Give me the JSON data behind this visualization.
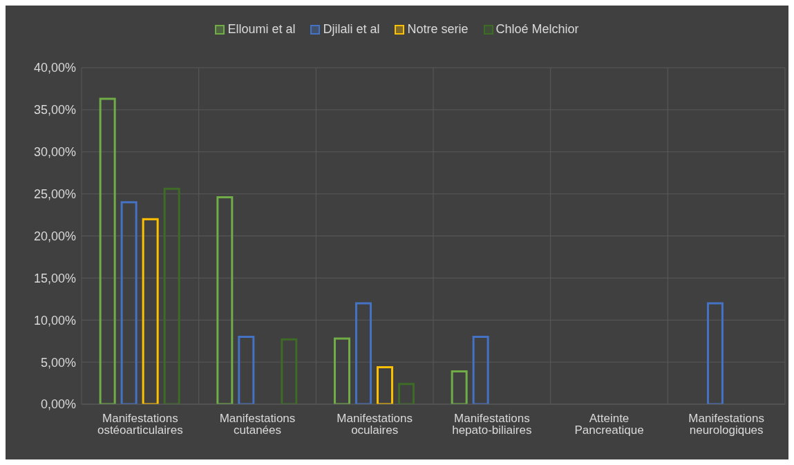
{
  "chart_data": {
    "type": "bar",
    "categories": [
      "Manifestations ostéoarticulaires",
      "Manifestations cutanées",
      "Manifestations oculaires",
      "Manifestations hepato-biliaires",
      "Atteinte Pancreatique",
      "Manifestations neurologiques"
    ],
    "series": [
      {
        "name": "Elloumi et al",
        "color": "#70ad47",
        "values": [
          36.3,
          24.6,
          7.8,
          3.9,
          null,
          null
        ]
      },
      {
        "name": "Djilali et al",
        "color": "#4472c4",
        "values": [
          24.0,
          8.0,
          12.0,
          8.0,
          null,
          12.0
        ]
      },
      {
        "name": "Notre serie",
        "color": "#ffc000",
        "values": [
          22.0,
          null,
          4.4,
          null,
          null,
          null
        ]
      },
      {
        "name": "Chloé Melchior",
        "color": "#3e6b26",
        "values": [
          25.6,
          7.7,
          2.4,
          null,
          null,
          null
        ]
      }
    ],
    "ylim": [
      0,
      40
    ],
    "yticks": [
      {
        "value": 0,
        "label": "0,00%"
      },
      {
        "value": 5,
        "label": "5,00%"
      },
      {
        "value": 10,
        "label": "10,00%"
      },
      {
        "value": 15,
        "label": "15,00%"
      },
      {
        "value": 20,
        "label": "20,00%"
      },
      {
        "value": 25,
        "label": "25,00%"
      },
      {
        "value": 30,
        "label": "30,00%"
      },
      {
        "value": 35,
        "label": "35,00%"
      },
      {
        "value": 40,
        "label": "40,00%"
      }
    ],
    "grid": true,
    "legend": "top"
  }
}
